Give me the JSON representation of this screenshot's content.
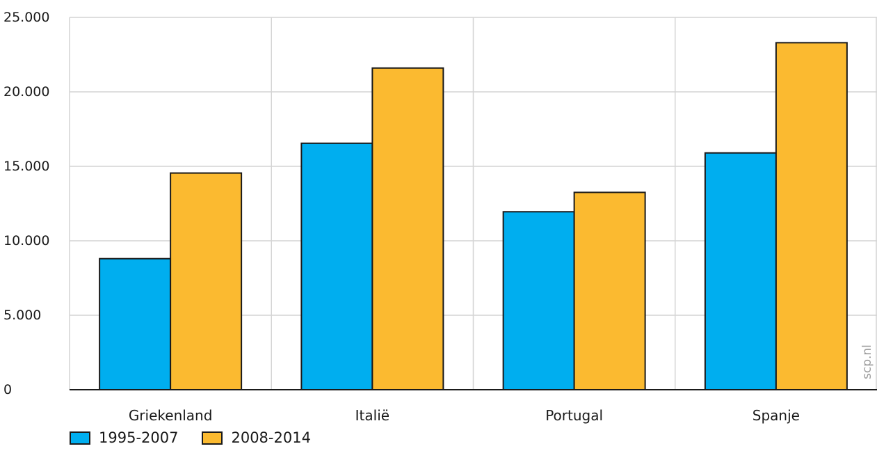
{
  "chart_data": {
    "type": "bar",
    "categories": [
      "Griekenland",
      "Italië",
      "Portugal",
      "Spanje"
    ],
    "series": [
      {
        "name": "1995-2007",
        "color": "#00AEEF",
        "values": [
          8800,
          16550,
          11950,
          15900
        ]
      },
      {
        "name": "2008-2014",
        "color": "#FBBA30",
        "values": [
          14550,
          21600,
          13250,
          23300
        ]
      }
    ],
    "y_ticks": [
      "0",
      "5.000",
      "10.000",
      "15.000",
      "20.000",
      "25.000"
    ],
    "ylim": [
      0,
      25000
    ],
    "grid": true,
    "legend_position": "bottom-left",
    "watermark": "scp.nl"
  }
}
